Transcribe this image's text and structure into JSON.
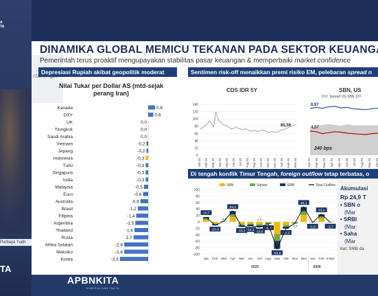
{
  "broadcast": {
    "logo_text": "A\nTA",
    "presenter_caption": "Purbaya Yudh",
    "left_brand": "TA",
    "bottom_brand": "APBNKITA",
    "bottom_tagline": "KINERJA DAN FAKTA"
  },
  "slide": {
    "partial_prev_label": "ntai  |  Agst",
    "title": "DINAMIKA GLOBAL MEMICU TEKANAN PADA SEKTOR KEUANGAN D",
    "subtitle_plain": "Pemerintah terus proaktif mengupayakan stabilitas pasar keuangan & memperbaiki ",
    "subtitle_italic": "market confidence",
    "panel_left_header": "Depresiasi Rupiah akibat geopolitik moderat",
    "panel_right_top_header_plain": "Sentimen risk-off menaikkan premi risiko EM, pelebaran ",
    "panel_right_top_header_italic": "spread n",
    "panel_right_bottom_header_plain": "Di tengah konflik Timur Tengah, ",
    "panel_right_bottom_header_italic": "foreign outflow",
    "panel_right_bottom_header_tail": " tetap terbatas, o"
  },
  "chart_data": [
    {
      "type": "bar",
      "orientation": "horizontal",
      "title": "Nilai Tukar per Dollar AS (mtd-sejak perang Iran)",
      "categories": [
        "Kanada",
        "DXY",
        "UK",
        "Tiongkok",
        "Saudi Arabia",
        "Vietnam",
        "Jepang",
        "Indonesia",
        "Turki",
        "Singapura",
        "India",
        "Malaysia",
        "Euro",
        "Australia",
        "Brasil",
        "Filipina",
        "Argentina",
        "Thailand",
        "Rusia",
        "Afrika Selatan",
        "Meksiko",
        "Korea"
      ],
      "value_labels": [
        "0,8",
        "0,6",
        "0,0",
        "0,0",
        "0,0",
        "-0,2",
        "-0,2",
        "-0,3",
        "-0,3",
        "-0,3",
        "-0,3",
        "-0,5",
        "-0,6",
        "-0,9",
        "-1,2",
        "-1,4",
        "-1,5",
        "-1,6",
        "-1,7",
        "-2,8",
        "-2,8",
        "-3,3"
      ],
      "values": [
        0.8,
        0.6,
        0.0,
        0.0,
        0.0,
        -0.2,
        -0.2,
        -0.3,
        -0.3,
        -0.3,
        -0.3,
        -0.5,
        -0.6,
        -0.9,
        -1.2,
        -1.4,
        -1.5,
        -1.6,
        -1.7,
        -2.8,
        -2.8,
        -3.3
      ],
      "colors": {
        "default": "#4472c4",
        "highlight": "#f5b800"
      },
      "highlight_category": "Indonesia"
    },
    {
      "type": "line",
      "title": "CDS IDR 5Y",
      "x_ticks": [
        "Jan-25",
        "Feb-25",
        "Mar-25",
        "Apr-25",
        "May-25",
        "Jun-25",
        "Jul-25",
        "Aug-25",
        "Sep-25",
        "Oct-25",
        "Nov-25",
        "Dec-25",
        "Jan-26",
        "Feb-26",
        "Mar-26"
      ],
      "y_ticks": [
        "0",
        "20",
        "40",
        "60",
        "80",
        "100",
        "120",
        "140"
      ],
      "ylim": [
        0,
        140
      ],
      "last_value_label": "85,59",
      "values": [
        72,
        76,
        80,
        85,
        95,
        88,
        78,
        120,
        98,
        92,
        85,
        83,
        80,
        76,
        72,
        74,
        78,
        74,
        72,
        70,
        73,
        71,
        68,
        66,
        69,
        67,
        65,
        68,
        70,
        66,
        64,
        63,
        65,
        64,
        63,
        66,
        68,
        70,
        72,
        75,
        78,
        80,
        83,
        85.59
      ],
      "color": "#a6a6a6"
    },
    {
      "type": "line",
      "title": "SBN, US",
      "legend": [
        "Spread US-SBN 10Y"
      ],
      "x_ticks": [
        "Jan-25",
        "Feb-25",
        "Mar-25",
        "Apr-25",
        "May-25",
        "Jun-25",
        "Jul-25",
        "Aug-25",
        "Sep-25",
        "Oct-25"
      ],
      "labels": {
        "sbn_start": "6,97",
        "ust_start": "4,57",
        "spread": "240 bps"
      },
      "series": [
        {
          "name": "SBN",
          "values": [
            6.97,
            7.1,
            7.0,
            7.15,
            7.2,
            7.05,
            7.1,
            6.95,
            6.9,
            6.85,
            6.95,
            7.0
          ],
          "color": "#2e4fa3"
        },
        {
          "name": "UST",
          "values": [
            4.57,
            4.5,
            4.3,
            4.4,
            4.5,
            4.45,
            4.35,
            4.3,
            4.25,
            4.2,
            4.3,
            4.35
          ],
          "color": "#c00000"
        }
      ],
      "spread_color": "#cfcfcf"
    },
    {
      "type": "bar",
      "stacked": true,
      "legend": [
        "SBN",
        "Saham",
        "SRBI",
        "Total Outflow"
      ],
      "colors": {
        "SBN": "#f5b800",
        "Saham": "#70ad47",
        "SRBI": "#1f3864",
        "Total Outflow": "#000000"
      },
      "categories": [
        "Jan",
        "Feb",
        "Mar",
        "Apr",
        "Mei",
        "Jun",
        "Juli",
        "Agu",
        "Sep",
        "Okt",
        "Nov",
        "Des",
        "Jan",
        "Feb",
        "8 Mar"
      ],
      "year_labels": [
        "2025",
        "2026"
      ],
      "y_ticks": [
        "100",
        "80",
        "60",
        "40",
        "20",
        "0",
        "-20",
        "-40",
        "-60",
        "-80",
        "-100"
      ],
      "ylim": [
        -100,
        100
      ],
      "total_labels": [
        "14,7",
        "-10,9",
        "",
        "33,4",
        "-15,3",
        "-12,1",
        "-16,6",
        "-6,6",
        "-83,9",
        "-21,2",
        "",
        "46,1",
        "-1,9",
        "23,2",
        "-1,7"
      ],
      "extra_labels": [
        "-3,6",
        "-1,8",
        "1,6",
        "-3,7"
      ],
      "total_values": [
        14.7,
        -10.9,
        2,
        33.4,
        -15.3,
        -12.1,
        -16.6,
        -6.6,
        -83.9,
        -21.2,
        -5,
        46.1,
        -1.9,
        23.2,
        -1.7
      ]
    }
  ],
  "side_note": {
    "heading": "Akumulasi",
    "amount": "Rp 24,9 T",
    "items": [
      "SBN o",
      "(Mar",
      "SRBI",
      "(Mar",
      "Saha",
      "(Mar"
    ],
    "footnote": "Ket: SRBI da"
  }
}
